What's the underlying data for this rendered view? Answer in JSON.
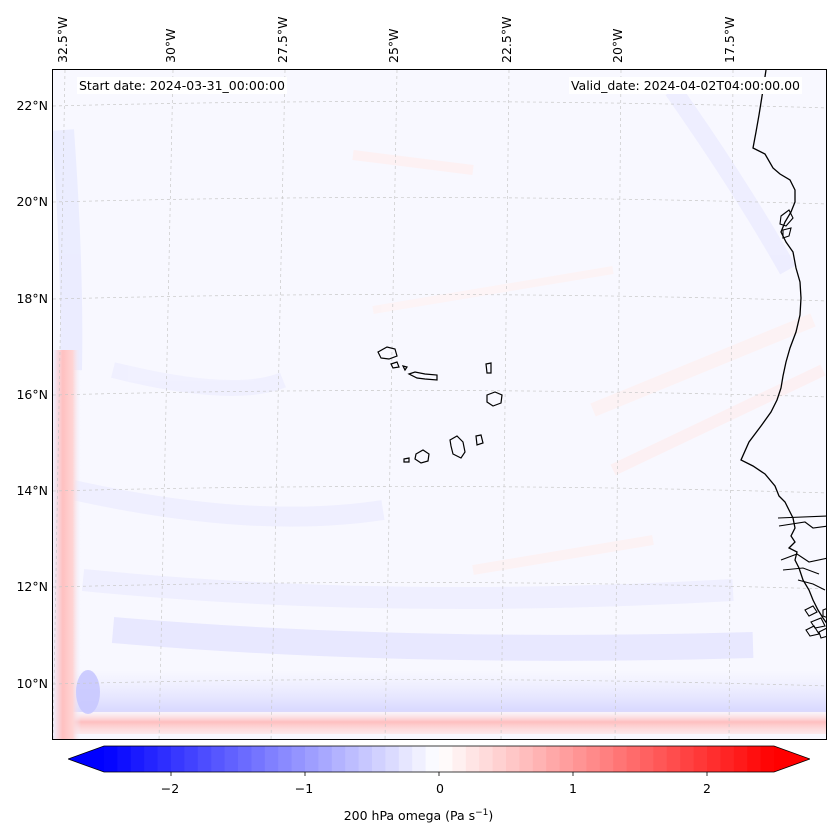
{
  "map": {
    "start_date": "Start date: 2024-03-31_00:00:00",
    "valid_date": "Valid_date: 2024-04-02T04:00:00.00",
    "longitude_labels": [
      "32.5°W",
      "30°W",
      "27.5°W",
      "25°W",
      "22.5°W",
      "20°W",
      "17.5°W"
    ],
    "latitude_labels": [
      "22°N",
      "20°N",
      "18°N",
      "16°N",
      "14°N",
      "12°N",
      "10°N"
    ],
    "variable": "200 hPa omega"
  },
  "colorbar": {
    "title_prefix": "200 hPa omega (Pa s",
    "title_exp": "−1",
    "title_suffix": ")",
    "ticks": [
      "−2",
      "−1",
      "0",
      "1",
      "2"
    ],
    "tick_values": [
      -2,
      -1,
      0,
      1,
      2
    ],
    "vmin": -2.5,
    "vmax": 2.5,
    "colormap": "bwr",
    "low_color": "#0000ff",
    "mid_color": "#ffffff",
    "high_color": "#ff0000"
  }
}
